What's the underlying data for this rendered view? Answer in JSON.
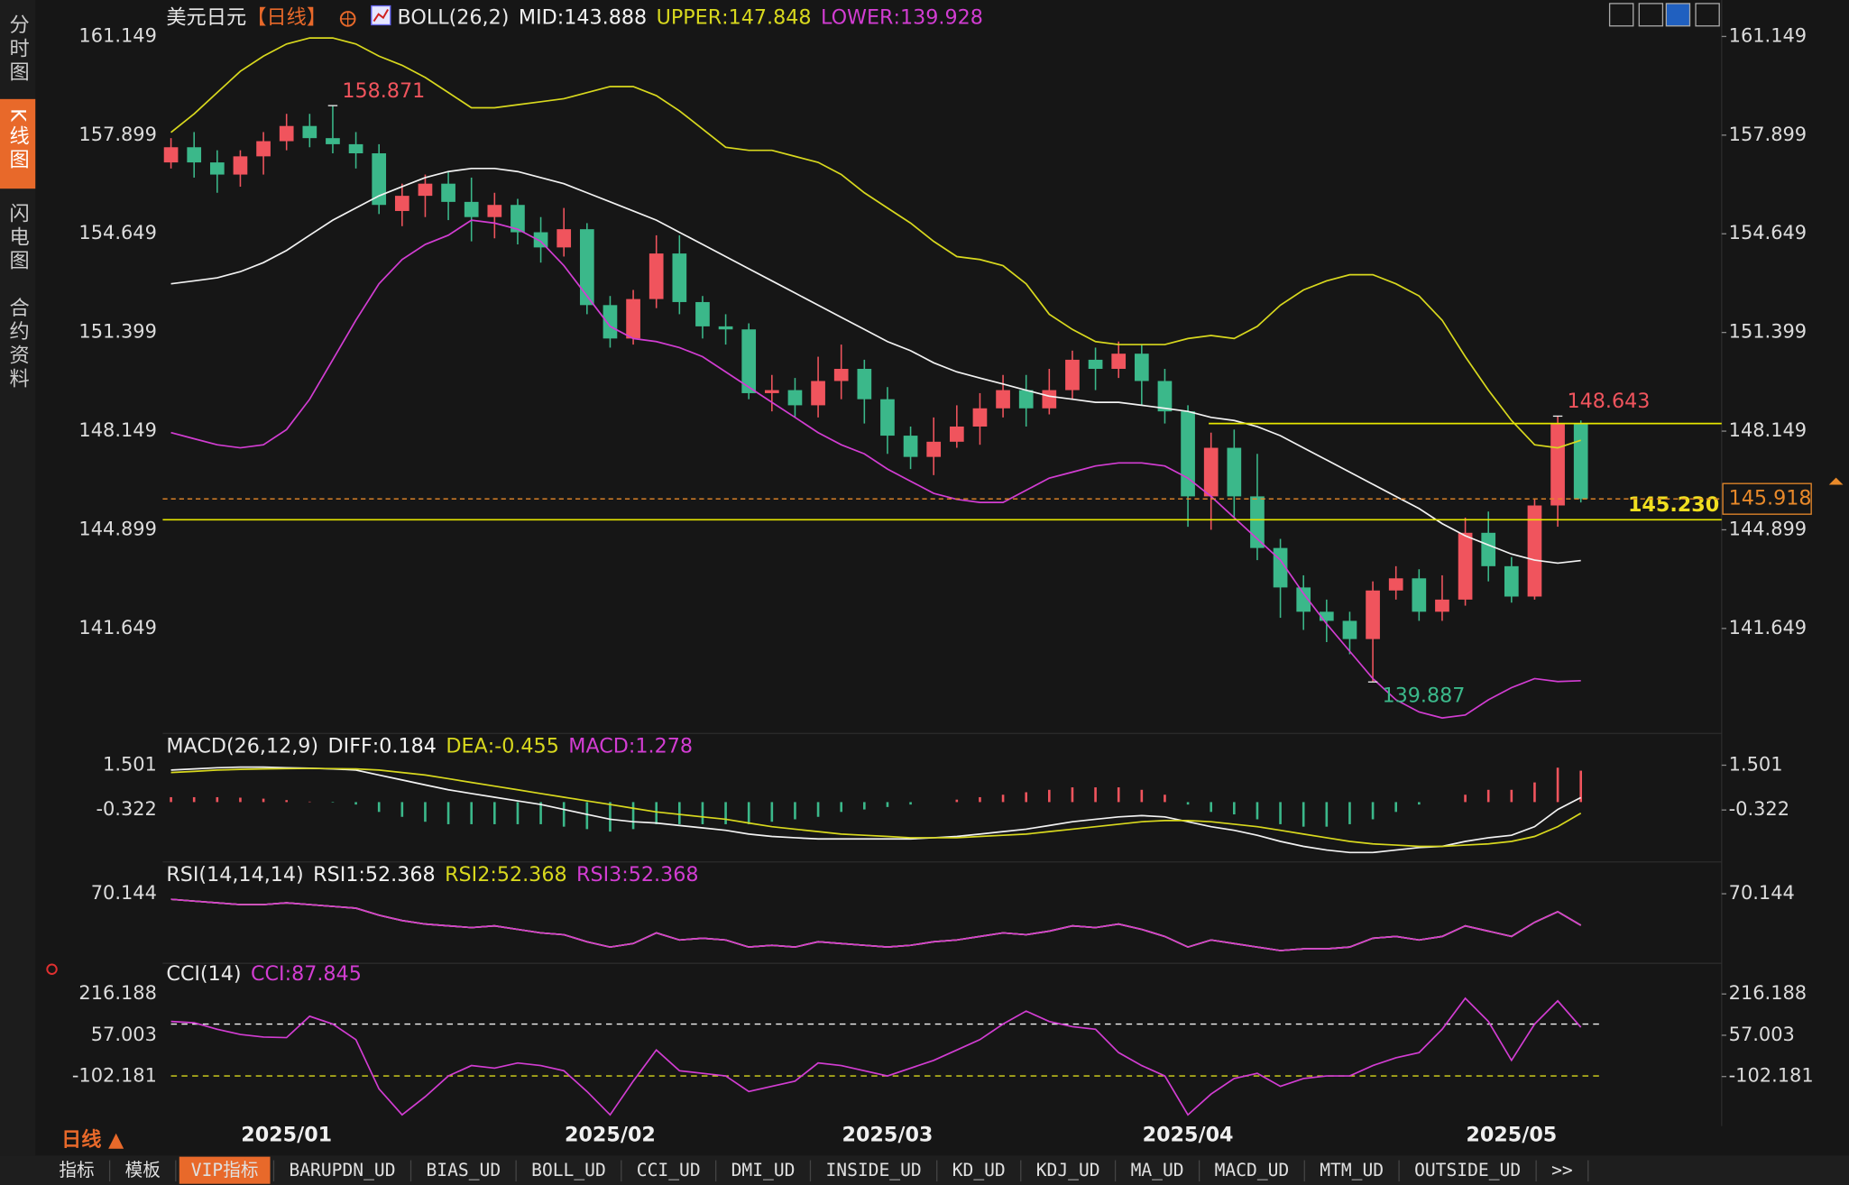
{
  "sidebar": [
    "分时图",
    "K线图",
    "闪电图",
    "合约资料"
  ],
  "sidebar_active": 1,
  "period_selector": "日线 ▲",
  "toolbar": [
    "指标",
    "模板",
    "VIP指标",
    "BARUPDN_UD",
    "BIAS_UD",
    "BOLL_UD",
    "CCI_UD",
    "DMI_UD",
    "INSIDE_UD",
    "KD_UD",
    "KDJ_UD",
    "MA_UD",
    "MACD_UD",
    "MTM_UD",
    "OUTSIDE_UD",
    ">>"
  ],
  "toolbar_active": 2,
  "legend_separator": ":",
  "chart_data": [
    {
      "type": "candlestick",
      "title": "美元日元",
      "period": "【日线】",
      "indicator": "BOLL(26,2)",
      "up_color": "#f0545d",
      "down_color": "#3bb88a",
      "categories": [
        null,
        null,
        null,
        null,
        null,
        "2025/01",
        null,
        null,
        null,
        null,
        null,
        null,
        null,
        null,
        null,
        null,
        null,
        null,
        null,
        "2025/02",
        null,
        null,
        null,
        null,
        null,
        null,
        null,
        null,
        null,
        null,
        null,
        "2025/03",
        null,
        null,
        null,
        null,
        null,
        null,
        null,
        null,
        null,
        null,
        null,
        null,
        "2025/04",
        null,
        null,
        null,
        null,
        null,
        null,
        null,
        null,
        null,
        null,
        null,
        null,
        null,
        "2025/05",
        null,
        null,
        null
      ],
      "open": [
        157.0,
        157.5,
        157.0,
        156.6,
        157.2,
        157.7,
        158.2,
        157.8,
        157.6,
        157.3,
        155.4,
        155.9,
        156.3,
        155.7,
        155.2,
        155.6,
        154.7,
        154.2,
        154.8,
        152.3,
        151.2,
        152.5,
        154.0,
        152.4,
        151.6,
        151.5,
        149.4,
        149.5,
        149.0,
        149.8,
        150.2,
        149.2,
        148.0,
        147.3,
        147.8,
        148.3,
        148.9,
        149.5,
        148.9,
        149.5,
        150.5,
        150.2,
        150.7,
        149.8,
        148.8,
        146.0,
        147.6,
        146.0,
        144.3,
        143.0,
        142.2,
        141.9,
        141.3,
        142.9,
        143.3,
        142.2,
        142.6,
        144.8,
        143.7,
        142.7,
        145.7,
        148.4
      ],
      "high": [
        157.8,
        158.0,
        157.4,
        157.4,
        158.0,
        158.6,
        158.6,
        158.871,
        158.0,
        157.6,
        156.3,
        156.6,
        156.7,
        156.5,
        156.0,
        155.8,
        155.2,
        155.5,
        155.0,
        152.6,
        152.8,
        154.6,
        154.6,
        152.6,
        152.0,
        151.7,
        150.0,
        149.9,
        150.6,
        151.0,
        150.5,
        149.6,
        148.3,
        148.6,
        149.0,
        149.4,
        150.0,
        150.0,
        150.2,
        150.8,
        150.9,
        151.1,
        151.0,
        150.2,
        149.0,
        148.1,
        148.2,
        147.4,
        144.6,
        143.4,
        142.6,
        142.2,
        143.2,
        143.7,
        143.6,
        143.4,
        145.3,
        145.5,
        144.0,
        145.9,
        148.643,
        148.5
      ],
      "low": [
        156.8,
        156.5,
        156.0,
        156.2,
        156.6,
        157.4,
        157.5,
        157.3,
        156.8,
        155.3,
        154.9,
        155.2,
        155.1,
        154.4,
        154.5,
        154.3,
        153.7,
        153.9,
        152.0,
        150.9,
        151.0,
        152.2,
        152.0,
        151.2,
        151.0,
        149.2,
        148.8,
        148.6,
        148.6,
        149.2,
        148.4,
        147.4,
        146.9,
        146.7,
        147.6,
        147.7,
        148.6,
        148.3,
        148.7,
        149.2,
        149.5,
        149.9,
        149.0,
        148.4,
        145.0,
        144.9,
        145.3,
        143.9,
        142.0,
        141.6,
        141.2,
        140.8,
        139.887,
        142.6,
        141.9,
        141.9,
        142.4,
        143.2,
        142.5,
        142.6,
        145.0,
        145.8
      ],
      "close": [
        157.5,
        157.0,
        156.6,
        157.2,
        157.7,
        158.2,
        157.8,
        157.6,
        157.3,
        155.6,
        155.9,
        156.3,
        155.7,
        155.2,
        155.6,
        154.7,
        154.2,
        154.8,
        152.3,
        151.2,
        152.5,
        154.0,
        152.4,
        151.6,
        151.5,
        149.4,
        149.5,
        149.0,
        149.8,
        150.2,
        149.2,
        148.0,
        147.3,
        147.8,
        148.3,
        148.9,
        149.5,
        148.9,
        149.5,
        150.5,
        150.2,
        150.7,
        149.8,
        148.8,
        146.0,
        147.6,
        146.0,
        144.3,
        143.0,
        142.2,
        141.9,
        141.3,
        142.9,
        143.3,
        142.2,
        142.6,
        144.8,
        143.7,
        142.7,
        145.7,
        148.4,
        145.918
      ],
      "series": [
        {
          "name": "MID",
          "color": "#f2f2f2",
          "values": [
            153.0,
            153.1,
            153.2,
            153.4,
            153.7,
            154.1,
            154.6,
            155.1,
            155.5,
            155.9,
            156.2,
            156.5,
            156.7,
            156.8,
            156.8,
            156.7,
            156.5,
            156.3,
            156.0,
            155.7,
            155.4,
            155.1,
            154.7,
            154.3,
            153.9,
            153.5,
            153.1,
            152.7,
            152.3,
            151.9,
            151.5,
            151.1,
            150.8,
            150.4,
            150.1,
            149.9,
            149.7,
            149.5,
            149.3,
            149.2,
            149.1,
            149.1,
            149.0,
            148.9,
            148.8,
            148.6,
            148.5,
            148.3,
            148.0,
            147.6,
            147.2,
            146.8,
            146.4,
            146.0,
            145.6,
            145.1,
            144.7,
            144.4,
            144.1,
            143.9,
            143.8,
            143.888
          ]
        },
        {
          "name": "UPPER",
          "color": "#d8d81e",
          "values": [
            157.99,
            158.6,
            159.3,
            160.0,
            160.5,
            160.9,
            161.1,
            161.1,
            160.9,
            160.5,
            160.2,
            159.8,
            159.3,
            158.8,
            158.8,
            158.9,
            159.0,
            159.1,
            159.3,
            159.5,
            159.5,
            159.2,
            158.7,
            158.1,
            157.5,
            157.4,
            157.4,
            157.2,
            157.0,
            156.6,
            156.0,
            155.5,
            155.0,
            154.4,
            153.9,
            153.8,
            153.6,
            153.0,
            152.0,
            151.5,
            151.1,
            151.0,
            151.0,
            151.0,
            151.2,
            151.3,
            151.2,
            151.6,
            152.3,
            152.8,
            153.1,
            153.3,
            153.3,
            153.0,
            152.6,
            151.8,
            150.6,
            149.5,
            148.5,
            147.7,
            147.6,
            147.848
          ]
        },
        {
          "name": "LOWER",
          "color": "#d23dd2",
          "values": [
            148.1,
            147.9,
            147.7,
            147.6,
            147.7,
            148.2,
            149.2,
            150.5,
            151.8,
            153.0,
            153.8,
            154.3,
            154.6,
            155.1,
            155.0,
            154.8,
            154.4,
            153.6,
            152.6,
            151.6,
            151.2,
            151.1,
            150.9,
            150.6,
            150.1,
            149.6,
            149.1,
            148.6,
            148.1,
            147.7,
            147.4,
            146.9,
            146.5,
            146.1,
            145.9,
            145.8,
            145.8,
            146.2,
            146.6,
            146.8,
            147.0,
            147.1,
            147.1,
            147.0,
            146.6,
            146.0,
            145.3,
            144.6,
            143.9,
            142.8,
            141.8,
            140.9,
            140.0,
            139.3,
            138.9,
            138.7,
            138.8,
            139.3,
            139.7,
            140.0,
            139.9,
            139.928
          ]
        }
      ],
      "horizontal_lines": [
        {
          "value": 145.23,
          "label": "145.230"
        },
        148.4
      ],
      "ylim": [
        138.27,
        162.35
      ],
      "yticks": [
        161.149,
        157.899,
        154.649,
        151.399,
        148.149,
        144.899,
        141.649
      ]
    },
    {
      "type": "combo",
      "title": "MACD(26,12,9)",
      "series": [
        {
          "name": "DIFF",
          "color": "#f2f2f2",
          "values": [
            1.3,
            1.35,
            1.4,
            1.42,
            1.42,
            1.4,
            1.38,
            1.35,
            1.3,
            1.1,
            0.9,
            0.7,
            0.5,
            0.35,
            0.2,
            0.05,
            -0.1,
            -0.3,
            -0.5,
            -0.7,
            -0.8,
            -0.85,
            -0.95,
            -1.05,
            -1.15,
            -1.3,
            -1.4,
            -1.45,
            -1.5,
            -1.5,
            -1.5,
            -1.5,
            -1.5,
            -1.45,
            -1.4,
            -1.3,
            -1.2,
            -1.1,
            -0.95,
            -0.8,
            -0.7,
            -0.6,
            -0.55,
            -0.6,
            -0.8,
            -1.0,
            -1.15,
            -1.35,
            -1.6,
            -1.8,
            -1.95,
            -2.05,
            -2.05,
            -1.95,
            -1.85,
            -1.8,
            -1.6,
            -1.45,
            -1.35,
            -1.0,
            -0.3,
            0.184
          ]
        },
        {
          "name": "DEA",
          "color": "#d8d81e",
          "values": [
            1.2,
            1.25,
            1.3,
            1.33,
            1.35,
            1.36,
            1.37,
            1.36,
            1.35,
            1.3,
            1.2,
            1.1,
            0.95,
            0.8,
            0.65,
            0.5,
            0.35,
            0.2,
            0.05,
            -0.1,
            -0.25,
            -0.4,
            -0.5,
            -0.6,
            -0.7,
            -0.85,
            -1.0,
            -1.1,
            -1.2,
            -1.3,
            -1.35,
            -1.4,
            -1.45,
            -1.45,
            -1.45,
            -1.4,
            -1.35,
            -1.3,
            -1.2,
            -1.1,
            -1.0,
            -0.9,
            -0.8,
            -0.75,
            -0.75,
            -0.8,
            -0.9,
            -1.0,
            -1.15,
            -1.3,
            -1.45,
            -1.6,
            -1.7,
            -1.75,
            -1.8,
            -1.8,
            -1.75,
            -1.7,
            -1.6,
            -1.4,
            -1.0,
            -0.455
          ]
        },
        {
          "name": "MACD",
          "type": "bar",
          "color": "#d23dd2",
          "up_color": "#f0545d",
          "down_color": "#3bb88a",
          "values": [
            0.2,
            0.2,
            0.2,
            0.18,
            0.14,
            0.08,
            0.02,
            -0.02,
            -0.1,
            -0.4,
            -0.6,
            -0.8,
            -0.9,
            -0.9,
            -0.9,
            -0.9,
            -0.9,
            -1.0,
            -1.1,
            -1.2,
            -1.1,
            -0.9,
            -0.9,
            -0.9,
            -0.9,
            -0.9,
            -0.8,
            -0.7,
            -0.6,
            -0.4,
            -0.3,
            -0.2,
            -0.1,
            0.0,
            0.1,
            0.2,
            0.3,
            0.4,
            0.5,
            0.6,
            0.6,
            0.6,
            0.5,
            0.3,
            -0.1,
            -0.4,
            -0.5,
            -0.7,
            -0.9,
            -1.0,
            -1.0,
            -0.9,
            -0.7,
            -0.4,
            -0.1,
            0.0,
            0.3,
            0.5,
            0.5,
            0.8,
            1.4,
            1.278
          ]
        }
      ],
      "ylim": [
        -2.29,
        2.65
      ],
      "yticks": [
        1.501,
        -0.322
      ]
    },
    {
      "type": "line",
      "title": "RSI(14,14,14)",
      "series": [
        {
          "name": "RSI1",
          "color": "#f2f2f2",
          "values": [
            67,
            66,
            65,
            64,
            64,
            65,
            64,
            63,
            62,
            58,
            55,
            53,
            52,
            51,
            52,
            50,
            48,
            47,
            43,
            40,
            42,
            48,
            44,
            45,
            44,
            40,
            41,
            40,
            43,
            42,
            41,
            40,
            41,
            43,
            44,
            46,
            48,
            47,
            49,
            52,
            51,
            53,
            50,
            46,
            40,
            44,
            42,
            40,
            38,
            39,
            39,
            40,
            45,
            46,
            44,
            46,
            52,
            49,
            46,
            54,
            60,
            52.368
          ]
        },
        {
          "name": "RSI2",
          "color": "#d8d81e",
          "values": [
            67,
            66,
            65,
            64,
            64,
            65,
            64,
            63,
            62,
            58,
            55,
            53,
            52,
            51,
            52,
            50,
            48,
            47,
            43,
            40,
            42,
            48,
            44,
            45,
            44,
            40,
            41,
            40,
            43,
            42,
            41,
            40,
            41,
            43,
            44,
            46,
            48,
            47,
            49,
            52,
            51,
            53,
            50,
            46,
            40,
            44,
            42,
            40,
            38,
            39,
            39,
            40,
            45,
            46,
            44,
            46,
            52,
            49,
            46,
            54,
            60,
            52.368
          ]
        },
        {
          "name": "RSI3",
          "color": "#d23dd2",
          "values": [
            67,
            66,
            65,
            64,
            64,
            65,
            64,
            63,
            62,
            58,
            55,
            53,
            52,
            51,
            52,
            50,
            48,
            47,
            43,
            40,
            42,
            48,
            44,
            45,
            44,
            40,
            41,
            40,
            43,
            42,
            41,
            40,
            41,
            43,
            44,
            46,
            48,
            47,
            49,
            52,
            51,
            53,
            50,
            46,
            40,
            44,
            42,
            40,
            38,
            39,
            39,
            40,
            45,
            46,
            44,
            46,
            52,
            49,
            46,
            54,
            60,
            52.368
          ]
        }
      ],
      "ylim": [
        32.14,
        85.48
      ],
      "yticks": [
        70.144
      ]
    },
    {
      "type": "line",
      "title": "CCI(14)",
      "series": [
        {
          "name": "CCI",
          "color": "#d23dd2",
          "values": [
            110,
            105,
            80,
            60,
            50,
            48,
            130,
            100,
            40,
            -150,
            -250,
            -180,
            -100,
            -60,
            -70,
            -50,
            -60,
            -80,
            -160,
            -250,
            -120,
            0,
            -80,
            -90,
            -100,
            -160,
            -140,
            -120,
            -50,
            -60,
            -80,
            -100,
            -70,
            -40,
            0,
            40,
            100,
            150,
            110,
            90,
            80,
            -10,
            -60,
            -100,
            -250,
            -170,
            -110,
            -90,
            -140,
            -110,
            -100,
            -100,
            -60,
            -30,
            -10,
            80,
            200,
            110,
            -40,
            100,
            190,
            87.845
          ]
        }
      ],
      "reference_lines": [
        {
          "value": 100,
          "color": "#f2f2f2"
        },
        {
          "value": -100,
          "color": "#d8d81e"
        }
      ],
      "ylim": [
        -293.3,
        320.8
      ],
      "yticks": [
        216.188,
        57.003,
        -102.181
      ]
    }
  ]
}
